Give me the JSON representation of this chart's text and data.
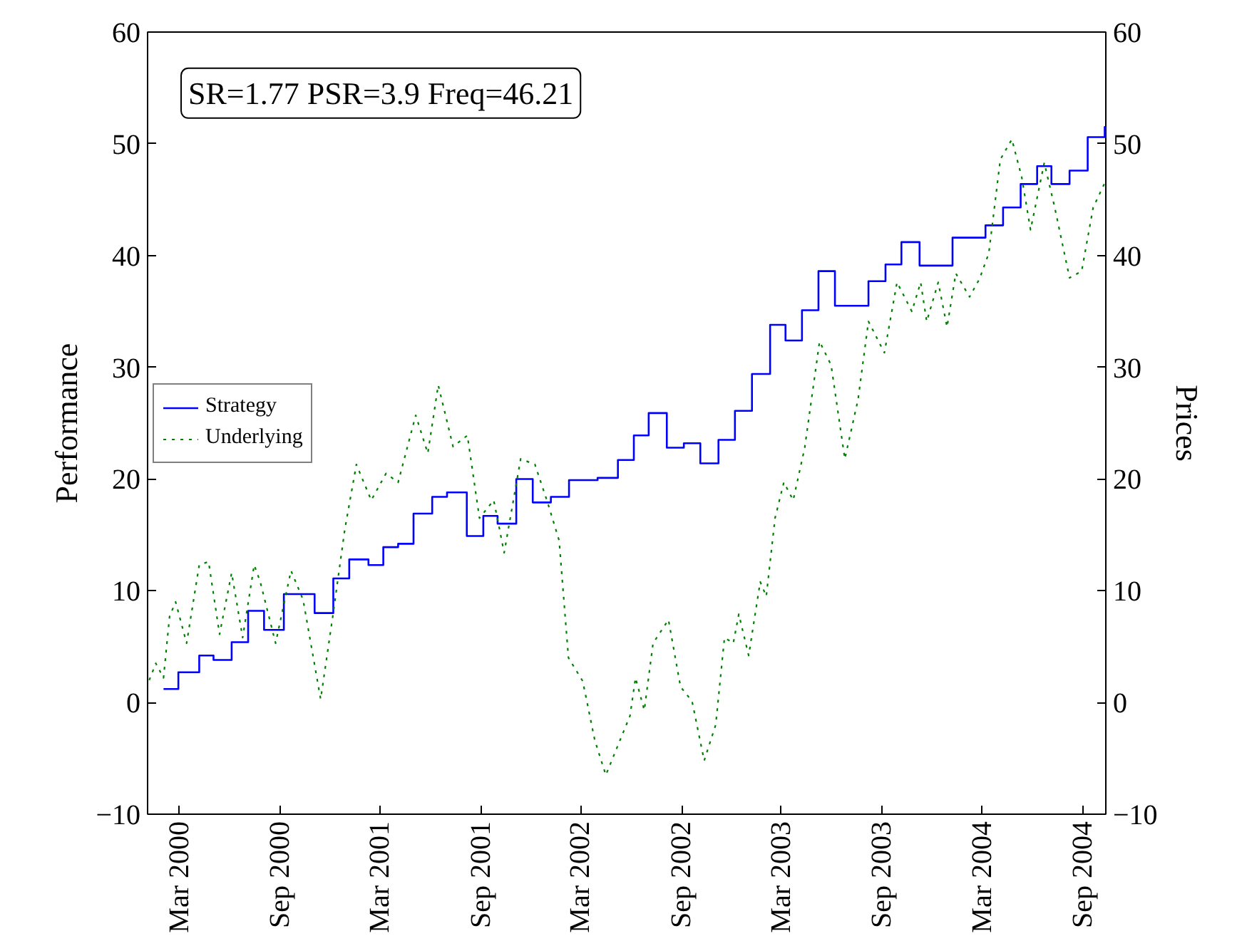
{
  "chart_data": {
    "type": "step",
    "ylabel": "Performance",
    "y2label": "Prices",
    "annotations": [
      "SR=1.77 PSR=3.9 Freq=46.21"
    ],
    "xlim": [
      "2000-01-03",
      "2004-10-12"
    ],
    "xticks": [
      {
        "value": "2000-03-01",
        "label": "Mar 2000"
      },
      {
        "value": "2000-09-01",
        "label": "Sep 2000"
      },
      {
        "value": "2001-03-01",
        "label": "Mar 2001"
      },
      {
        "value": "2001-09-01",
        "label": "Sep 2001"
      },
      {
        "value": "2002-03-01",
        "label": "Mar 2002"
      },
      {
        "value": "2002-09-01",
        "label": "Sep 2002"
      },
      {
        "value": "2003-03-01",
        "label": "Mar 2003"
      },
      {
        "value": "2003-09-01",
        "label": "Sep 2003"
      },
      {
        "value": "2004-03-01",
        "label": "Mar 2004"
      },
      {
        "value": "2004-09-01",
        "label": "Sep 2004"
      }
    ],
    "ylim": [
      -10,
      60
    ],
    "yticks": [
      -10,
      0,
      10,
      20,
      30,
      40,
      50,
      60
    ],
    "y2lim": [
      -10,
      60
    ],
    "y2ticks": [
      -10,
      0,
      10,
      20,
      30,
      40,
      50,
      60
    ],
    "grid": false,
    "legend": "left",
    "marker": "none",
    "series": [
      {
        "name": "Strategy",
        "color": "#0000ff",
        "line_style": "solid",
        "x": [
          "2000-02-01",
          "2000-02-28",
          "2000-04-06",
          "2000-05-02",
          "2000-06-04",
          "2000-07-04",
          "2000-08-02",
          "2000-09-07",
          "2000-11-02",
          "2000-12-06",
          "2001-01-04",
          "2001-02-08",
          "2001-03-07",
          "2001-04-03",
          "2001-05-01",
          "2001-06-04",
          "2001-07-01",
          "2001-08-06",
          "2001-09-05",
          "2001-10-01",
          "2001-11-04",
          "2001-12-04",
          "2002-01-06",
          "2002-02-08",
          "2002-04-01",
          "2002-05-08",
          "2002-06-06",
          "2002-07-03",
          "2002-08-05",
          "2002-09-05",
          "2002-10-05",
          "2002-11-07",
          "2002-12-07",
          "2003-01-07",
          "2003-02-09",
          "2003-03-09",
          "2003-04-08",
          "2003-05-08",
          "2003-06-07",
          "2003-08-07",
          "2003-09-07",
          "2003-10-06",
          "2003-11-08",
          "2004-01-07",
          "2004-03-07",
          "2004-04-08",
          "2004-05-10",
          "2004-06-09",
          "2004-07-05",
          "2004-08-07",
          "2004-09-09",
          "2004-10-10",
          "2004-10-12"
        ],
        "values": [
          1.2,
          2.7,
          4.2,
          3.8,
          5.4,
          8.2,
          6.5,
          9.7,
          8.0,
          11.1,
          12.8,
          12.3,
          13.9,
          14.2,
          16.9,
          18.4,
          18.8,
          14.9,
          16.7,
          16.0,
          20.0,
          17.9,
          18.4,
          19.9,
          20.1,
          21.7,
          23.9,
          25.9,
          22.8,
          23.2,
          21.4,
          23.5,
          26.1,
          29.4,
          33.8,
          32.4,
          35.1,
          38.6,
          35.5,
          37.7,
          39.2,
          41.2,
          39.1,
          41.6,
          42.7,
          44.3,
          46.4,
          48.0,
          46.4,
          47.6,
          50.6,
          51.5,
          51.5
        ]
      },
      {
        "name": "Underlying",
        "type": "line",
        "color": "#008000",
        "line_style": "dotted",
        "x": [
          "2000-01-06",
          "2000-01-18",
          "2000-02-01",
          "2000-02-12",
          "2000-02-23",
          "2000-03-14",
          "2000-04-06",
          "2000-04-23",
          "2000-05-13",
          "2000-06-04",
          "2000-06-24",
          "2000-07-15",
          "2000-07-26",
          "2000-08-23",
          "2000-09-20",
          "2000-10-12",
          "2000-11-13",
          "2000-12-05",
          "2000-12-27",
          "2001-01-17",
          "2001-02-13",
          "2001-03-12",
          "2001-04-03",
          "2001-05-05",
          "2001-05-27",
          "2001-06-15",
          "2001-07-12",
          "2001-08-07",
          "2001-08-29",
          "2001-09-24",
          "2001-10-13",
          "2001-11-12",
          "2001-12-08",
          "2001-12-31",
          "2002-01-21",
          "2002-02-07",
          "2002-03-05",
          "2002-03-27",
          "2002-04-16",
          "2002-05-10",
          "2002-05-30",
          "2002-06-09",
          "2002-06-25",
          "2002-07-11",
          "2002-08-08",
          "2002-08-30",
          "2002-09-20",
          "2002-10-12",
          "2002-11-02",
          "2002-11-18",
          "2002-12-04",
          "2002-12-14",
          "2003-01-01",
          "2003-01-22",
          "2003-02-02",
          "2003-02-18",
          "2003-03-06",
          "2003-03-23",
          "2003-04-13",
          "2003-05-10",
          "2003-05-31",
          "2003-06-25",
          "2003-07-19",
          "2003-08-07",
          "2003-09-05",
          "2003-09-28",
          "2003-10-25",
          "2003-11-10",
          "2003-11-21",
          "2003-12-12",
          "2003-12-28",
          "2004-01-13",
          "2004-02-07",
          "2004-02-25",
          "2004-03-13",
          "2004-04-03",
          "2004-04-24",
          "2004-05-12",
          "2004-05-28",
          "2004-06-22",
          "2004-07-11",
          "2004-08-07",
          "2004-08-29",
          "2004-09-19",
          "2004-10-12"
        ],
        "values": [
          2.0,
          3.5,
          2.2,
          7.7,
          9.0,
          5.3,
          12.3,
          12.6,
          6.1,
          11.6,
          5.8,
          12.3,
          10.8,
          5.3,
          11.8,
          9.2,
          0.3,
          7.7,
          15.5,
          21.3,
          18.1,
          20.5,
          19.7,
          25.7,
          22.3,
          28.4,
          22.9,
          23.9,
          16.5,
          18.1,
          13.4,
          21.8,
          21.3,
          17.9,
          14.5,
          4.0,
          1.9,
          -3.4,
          -6.5,
          -3.6,
          -1.2,
          2.2,
          -0.7,
          5.3,
          7.4,
          1.4,
          0.1,
          -5.2,
          -2.0,
          5.8,
          5.3,
          7.9,
          4.2,
          10.8,
          9.5,
          16.5,
          19.7,
          18.1,
          22.8,
          32.3,
          30.2,
          21.8,
          27.1,
          34.1,
          31.3,
          37.6,
          35.0,
          37.6,
          34.1,
          37.6,
          33.6,
          38.4,
          36.3,
          37.9,
          40.2,
          48.6,
          50.4,
          47.0,
          42.3,
          48.3,
          44.3,
          38.0,
          38.6,
          44.3,
          46.7
        ]
      }
    ]
  }
}
